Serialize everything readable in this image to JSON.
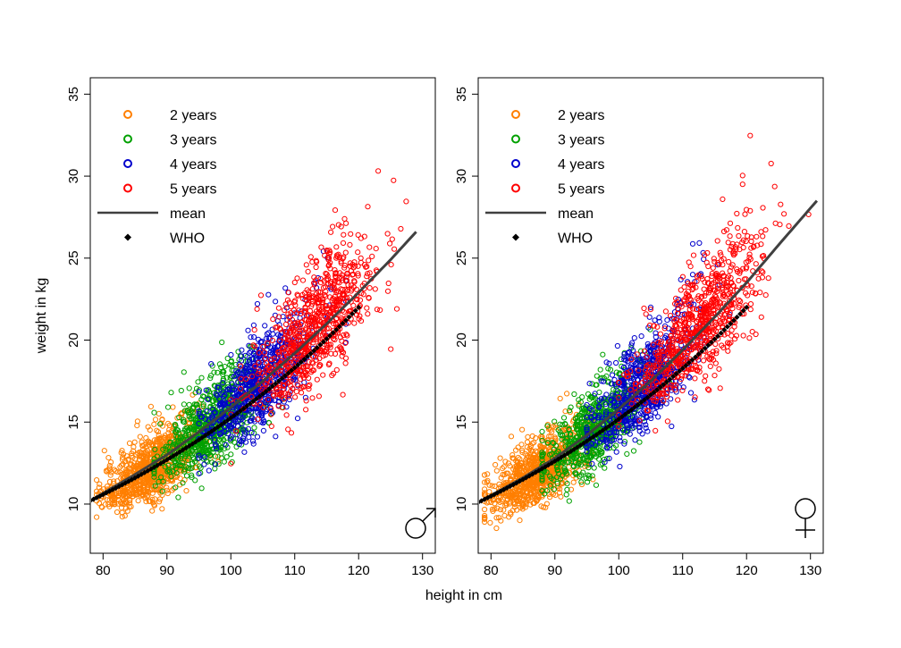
{
  "figure": {
    "xlabel": "height in cm",
    "ylabel": "weight in kg"
  },
  "chart_data": [
    {
      "type": "scatter",
      "panel": "left",
      "symbol": "male",
      "xlim": [
        78,
        132
      ],
      "ylim": [
        7,
        36
      ],
      "xticks": [
        80,
        90,
        100,
        110,
        120,
        130
      ],
      "yticks": [
        10,
        15,
        20,
        25,
        30,
        35
      ],
      "xlabel": "height in cm",
      "ylabel": "weight in kg",
      "grid": false,
      "legend_position": "top-left",
      "legend": [
        {
          "label": "2 years",
          "kind": "circle",
          "color": "#ff7f00"
        },
        {
          "label": "3 years",
          "kind": "circle",
          "color": "#00a000"
        },
        {
          "label": "4 years",
          "kind": "circle",
          "color": "#0000cc"
        },
        {
          "label": "5 years",
          "kind": "circle",
          "color": "#ff0000"
        },
        {
          "label": "mean",
          "kind": "line",
          "color": "#404040"
        },
        {
          "label": "WHO",
          "kind": "diamond",
          "color": "#000000"
        }
      ],
      "series": [
        {
          "name": "2 years",
          "color": "#ff7f00",
          "count": 800,
          "x_range": [
            79,
            98
          ],
          "x_mean": 87.5,
          "x_sd": 3.8
        },
        {
          "name": "3 years",
          "color": "#00a000",
          "count": 700,
          "x_range": [
            88,
            108
          ],
          "x_mean": 97,
          "x_sd": 4
        },
        {
          "name": "4 years",
          "color": "#0000cc",
          "count": 650,
          "x_range": [
            95,
            118
          ],
          "x_mean": 104.5,
          "x_sd": 4.3
        },
        {
          "name": "5 years",
          "color": "#ff0000",
          "count": 750,
          "x_range": [
            100,
            130
          ],
          "x_mean": 113,
          "x_sd": 5
        }
      ],
      "mean_curve": {
        "color": "#404040",
        "x": [
          78,
          85,
          90,
          95,
          100,
          105,
          110,
          115,
          120,
          125,
          129
        ],
        "y": [
          10.2,
          11.8,
          13.0,
          14.4,
          15.9,
          17.5,
          19.2,
          21.0,
          22.9,
          24.9,
          26.6
        ]
      },
      "who_reference": {
        "color": "#000000",
        "x_range": [
          78,
          120
        ],
        "y_at_78": 10.2,
        "y_at_120": 22.0
      }
    },
    {
      "type": "scatter",
      "panel": "right",
      "symbol": "female",
      "xlim": [
        78,
        132
      ],
      "ylim": [
        7,
        36
      ],
      "xticks": [
        80,
        90,
        100,
        110,
        120,
        130
      ],
      "yticks": [
        10,
        15,
        20,
        25,
        30,
        35
      ],
      "xlabel": "height in cm",
      "ylabel": "weight in kg",
      "grid": false,
      "legend_position": "top-left",
      "legend": [
        {
          "label": "2 years",
          "kind": "circle",
          "color": "#ff7f00"
        },
        {
          "label": "3 years",
          "kind": "circle",
          "color": "#00a000"
        },
        {
          "label": "4 years",
          "kind": "circle",
          "color": "#0000cc"
        },
        {
          "label": "5 years",
          "kind": "circle",
          "color": "#ff0000"
        },
        {
          "label": "mean",
          "kind": "line",
          "color": "#404040"
        },
        {
          "label": "WHO",
          "kind": "diamond",
          "color": "#000000"
        }
      ],
      "series": [
        {
          "name": "2 years",
          "color": "#ff7f00",
          "count": 800,
          "x_range": [
            79,
            98
          ],
          "x_mean": 87,
          "x_sd": 3.8
        },
        {
          "name": "3 years",
          "color": "#00a000",
          "count": 700,
          "x_range": [
            88,
            108
          ],
          "x_mean": 96.5,
          "x_sd": 4
        },
        {
          "name": "4 years",
          "color": "#0000cc",
          "count": 650,
          "x_range": [
            95,
            118
          ],
          "x_mean": 104,
          "x_sd": 4.3
        },
        {
          "name": "5 years",
          "color": "#ff0000",
          "count": 750,
          "x_range": [
            100,
            131
          ],
          "x_mean": 112.5,
          "x_sd": 5
        }
      ],
      "mean_curve": {
        "color": "#404040",
        "x": [
          78,
          85,
          90,
          95,
          100,
          105,
          110,
          115,
          120,
          125,
          131
        ],
        "y": [
          10.1,
          11.6,
          12.8,
          14.2,
          15.8,
          17.5,
          19.4,
          21.4,
          23.5,
          25.8,
          28.5
        ]
      },
      "who_reference": {
        "color": "#000000",
        "x_range": [
          78,
          120
        ],
        "y_at_78": 10.1,
        "y_at_120": 22.0
      }
    }
  ]
}
